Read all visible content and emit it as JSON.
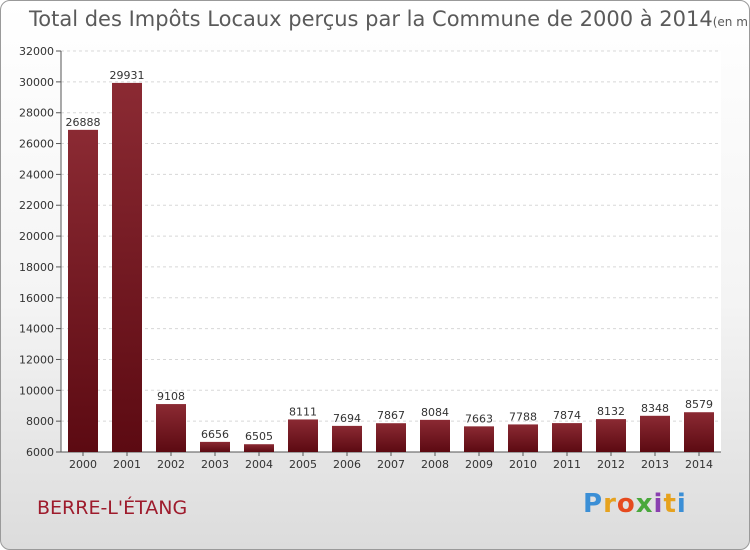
{
  "header": {
    "title": "Total des Impôts Locaux perçus par la Commune de 2000 à 2014",
    "unit": "(en milliers d'€)"
  },
  "footer": {
    "commune": "BERRE-L'ÉTANG",
    "brand_letters": [
      "P",
      "r",
      "o",
      "x",
      "i",
      "t",
      "i"
    ]
  },
  "colors": {
    "bar_top": "#8b2a33",
    "bar_bottom": "#5c0a12",
    "commune": "#9e1b2c",
    "brand": [
      "#3b8fd6",
      "#e6a21e",
      "#e64a1e",
      "#49a83c",
      "#8a3fb0",
      "#e6a21e",
      "#3b8fd6"
    ]
  },
  "chart_data": {
    "type": "bar",
    "categories": [
      "2000",
      "2001",
      "2002",
      "2003",
      "2004",
      "2005",
      "2006",
      "2007",
      "2008",
      "2009",
      "2010",
      "2011",
      "2012",
      "2013",
      "2014"
    ],
    "values": [
      26888,
      29931,
      9108,
      6656,
      6505,
      8111,
      7694,
      7867,
      8084,
      7663,
      7788,
      7874,
      8132,
      8348,
      8579
    ],
    "title": "Total des Impôts Locaux perçus par la Commune de 2000 à 2014",
    "xlabel": "",
    "ylabel": "",
    "ylim": [
      6000,
      32000
    ],
    "yticks": [
      6000,
      8000,
      10000,
      12000,
      14000,
      16000,
      18000,
      20000,
      22000,
      24000,
      26000,
      28000,
      30000,
      32000
    ],
    "grid": true,
    "legend": "none"
  }
}
